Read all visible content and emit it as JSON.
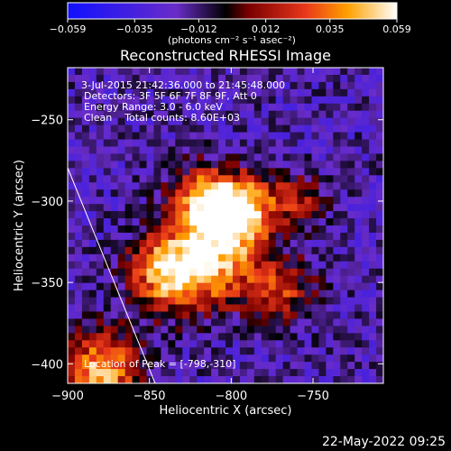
{
  "chart_data": {
    "type": "heatmap",
    "title": "Reconstructed RHESSI Image",
    "xlabel": "Heliocentric X (arcsec)",
    "ylabel": "Heliocentric Y (arcsec)",
    "xlim": [
      -900,
      -707
    ],
    "ylim": [
      -412,
      -218
    ],
    "x_ticks": [
      -900,
      -850,
      -800,
      -750
    ],
    "x_tick_labels": [
      "−900",
      "−850",
      "−800",
      "−750"
    ],
    "y_ticks": [
      -400,
      -350,
      -300,
      -250
    ],
    "y_tick_labels": [
      "−400",
      "−350",
      "−300",
      "−250"
    ],
    "colorbar": {
      "range": [
        -0.059,
        0.059
      ],
      "ticks": [
        -0.059,
        -0.035,
        -0.012,
        0.012,
        0.035,
        0.059
      ],
      "tick_labels": [
        "−0.059",
        "−0.035",
        "−0.012",
        "0.012",
        "0.035",
        "0.059"
      ],
      "units": "(photons cm⁻² s⁻¹ asec⁻²)"
    },
    "annotations": {
      "time_range": "3-Jul-2015 21:42:36.000 to 21:45:48.000",
      "detectors": "Detectors: 3F 5F 6F 7F 8F 9F, Att 0",
      "energy": "Energy Range: 3.0 - 6.0 keV",
      "clean": "Clean    Total counts: 8.60E+03",
      "peak": "Location of Peak = [-798,-310]"
    },
    "sources": [
      {
        "x": -795,
        "y": -305,
        "peak": 0.059,
        "sigma": 14
      },
      {
        "x": -812,
        "y": -335,
        "peak": 0.045,
        "sigma": 20
      },
      {
        "x": -840,
        "y": -345,
        "peak": 0.04,
        "sigma": 16
      },
      {
        "x": -818,
        "y": -300,
        "peak": 0.036,
        "sigma": 14
      },
      {
        "x": -880,
        "y": -405,
        "peak": 0.05,
        "sigma": 16
      },
      {
        "x": -770,
        "y": -355,
        "peak": 0.018,
        "sigma": 14
      },
      {
        "x": -760,
        "y": -300,
        "peak": 0.014,
        "sigma": 12
      }
    ],
    "background": -0.02,
    "grid": false
  },
  "footer": {
    "timestamp": "22-May-2022 09:25"
  }
}
